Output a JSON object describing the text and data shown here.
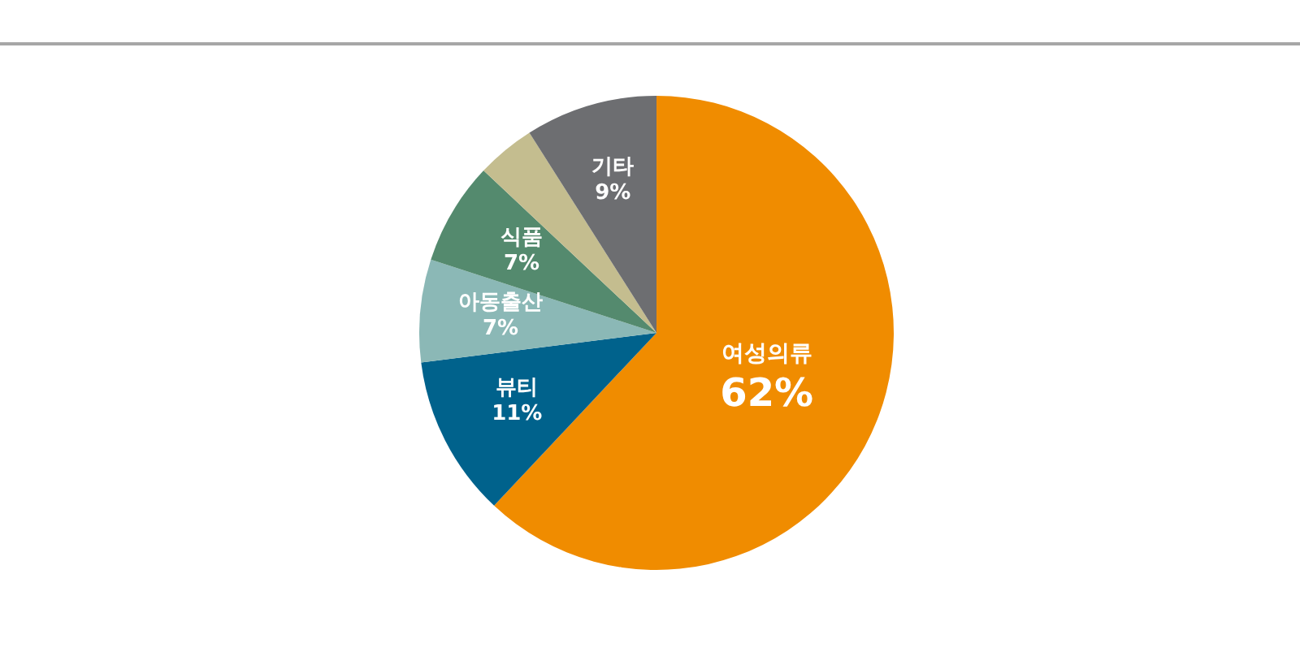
{
  "chart_data": {
    "type": "pie",
    "categories": [
      "여성의류",
      "뷰티",
      "아동출산",
      "식품",
      null,
      "기타"
    ],
    "values": [
      62,
      11,
      7,
      7,
      4,
      9
    ],
    "colors": [
      "#f08c00",
      "#00628c",
      "#8bb8b6",
      "#548a6e",
      "#c4bd8f",
      "#6d6e71"
    ],
    "value_labels": [
      "62%",
      "11%",
      "7%",
      "7%",
      null,
      "9%"
    ]
  }
}
